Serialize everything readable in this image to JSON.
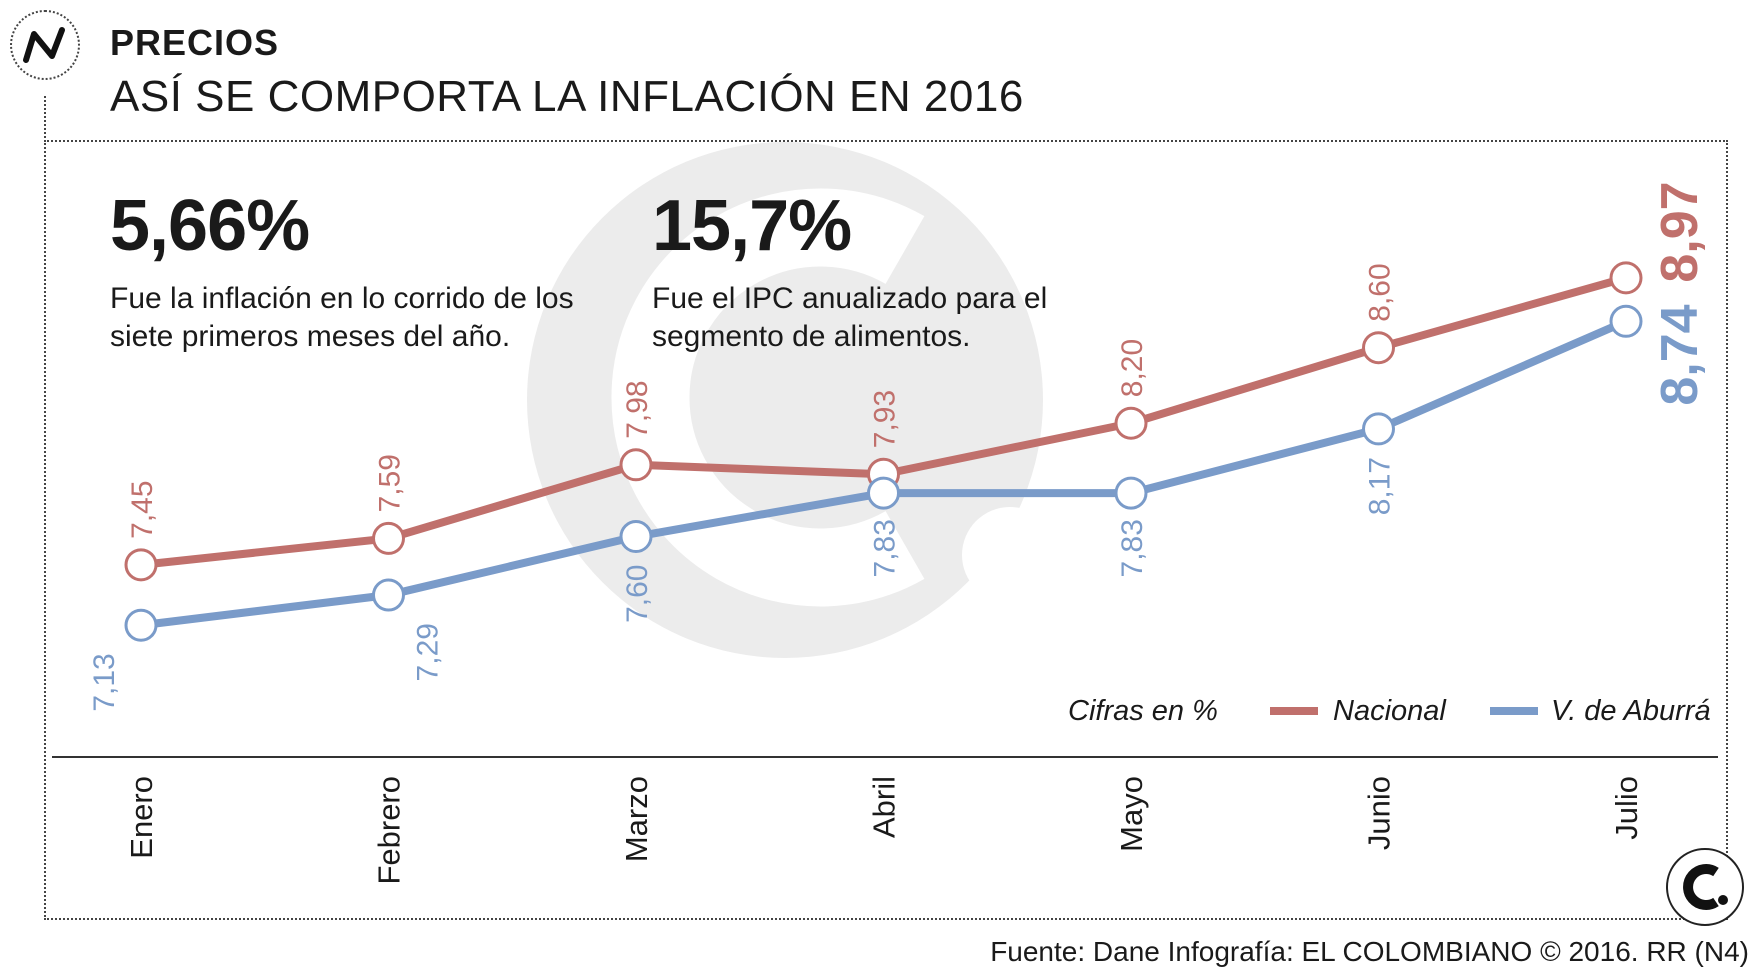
{
  "header": {
    "section": "PRECIOS",
    "title": "ASÍ SE COMPORTA LA INFLACIÓN EN 2016"
  },
  "stats": [
    {
      "value": "5,66%",
      "description": "Fue la inflación en lo corrido de los siete primeros meses del año."
    },
    {
      "value": "15,7%",
      "description": "Fue el IPC anualizado para el segmento de alimentos."
    }
  ],
  "chart_data": {
    "type": "line",
    "categories": [
      "Enero",
      "Febrero",
      "Marzo",
      "Abril",
      "Mayo",
      "Junio",
      "Julio"
    ],
    "series": [
      {
        "name": "Nacional",
        "color": "#c0706c",
        "values": [
          7.45,
          7.59,
          7.98,
          7.93,
          8.2,
          8.6,
          8.97
        ],
        "labels": [
          "7,45",
          "7,59",
          "7,98",
          "7,93",
          "8,20",
          "8,60",
          "8,97"
        ]
      },
      {
        "name": "V. de Aburrá",
        "color": "#7a9bc9",
        "values": [
          7.13,
          7.29,
          7.6,
          7.83,
          7.83,
          8.17,
          8.74
        ],
        "labels": [
          "7,13",
          "7,29",
          "7,60",
          "7,83",
          "7,83",
          "8,17",
          "8,74"
        ]
      }
    ],
    "units_note": "Cifras en %",
    "ylim": [
      6.75,
      9.25
    ],
    "xlabel": "",
    "ylabel": ""
  },
  "footer": {
    "source": "Fuente: Dane Infografía: EL COLOMBIANO © 2016. RR (N4)"
  },
  "icons": {
    "header_badge": "trend-line-icon",
    "brand_logo": "el-colombiano-logo-icon",
    "watermark": "el-colombiano-watermark-icon"
  },
  "colors": {
    "nacional": "#c0706c",
    "aburra": "#7a9bc9",
    "watermark": "#ececec",
    "text": "#1a1a1a"
  }
}
